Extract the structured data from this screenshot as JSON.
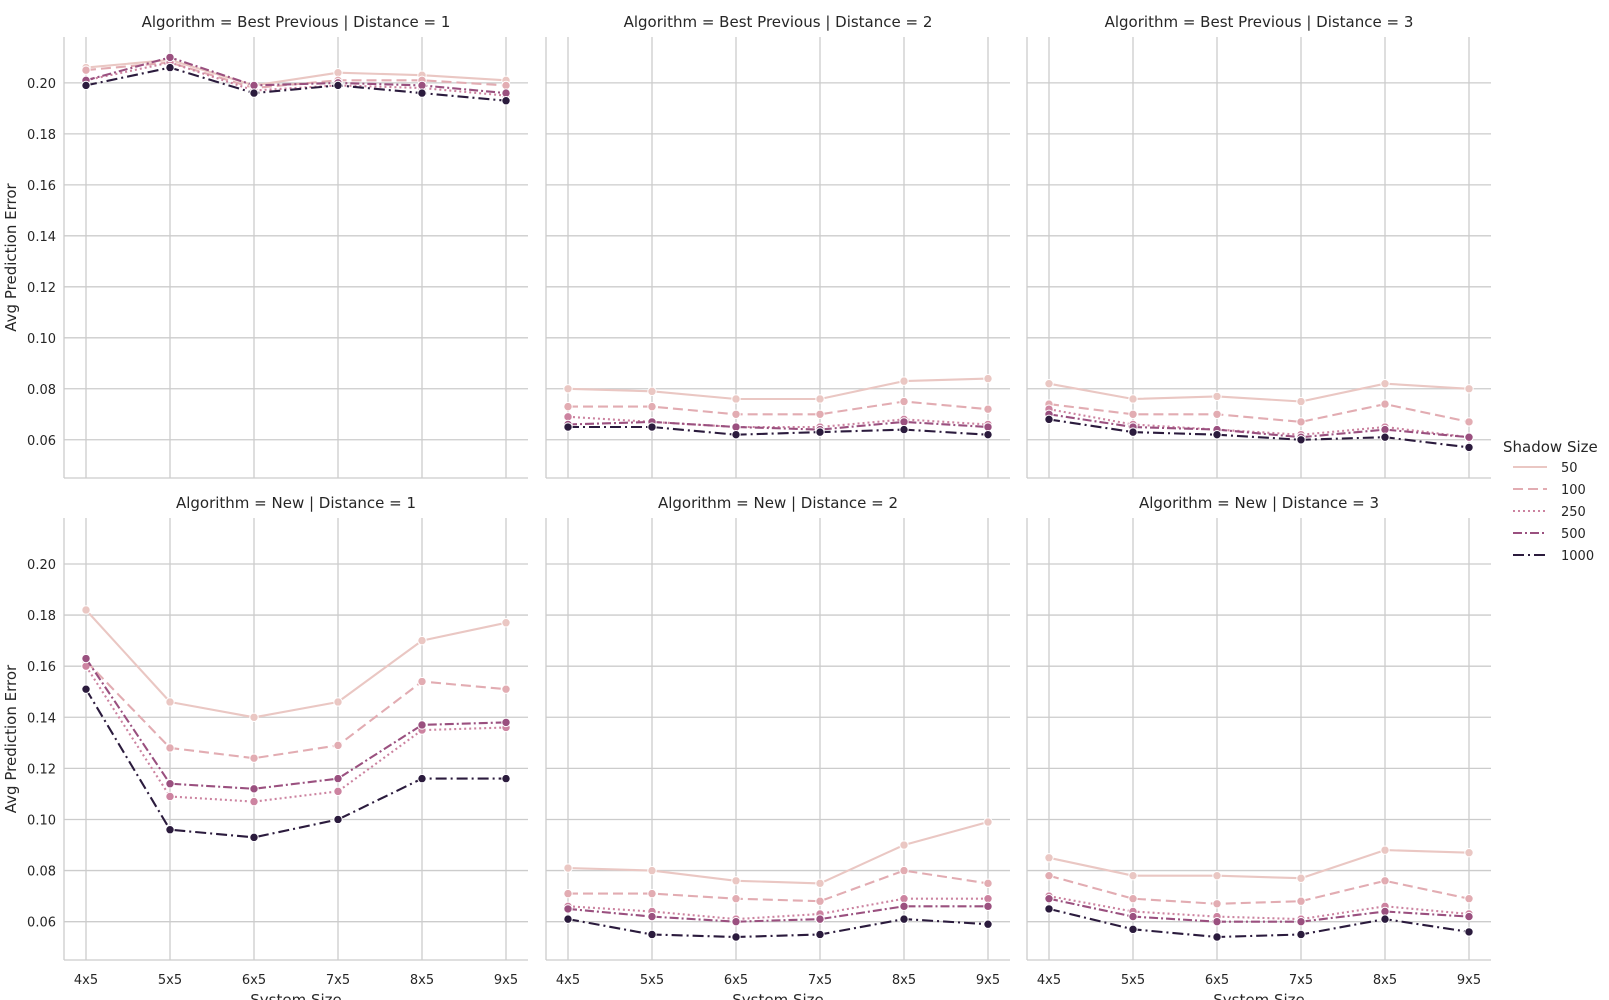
{
  "chart_data": {
    "type": "line",
    "layout": "facet-grid 2x3",
    "x": [
      "4x5",
      "5x5",
      "6x5",
      "7x5",
      "8x5",
      "9x5"
    ],
    "xlabel": "System Size",
    "ylabel": "Avg Prediction Error",
    "ylim": [
      0.045,
      0.218
    ],
    "yticks": [
      "0.06",
      "0.08",
      "0.10",
      "0.12",
      "0.14",
      "0.16",
      "0.18",
      "0.20"
    ],
    "grid": true,
    "legend": {
      "title": "Shadow Size",
      "placement": "right",
      "entries": [
        "50",
        "100",
        "250",
        "500",
        "1000"
      ]
    },
    "series_style": [
      {
        "color": "#eac7c3",
        "dash": "none"
      },
      {
        "color": "#e2acb2",
        "dash": "10,5"
      },
      {
        "color": "#cc83a0",
        "dash": "2,3"
      },
      {
        "color": "#9a507f",
        "dash": "9,3,2,3"
      },
      {
        "color": "#2b1b3d",
        "dash": "11,4,2,4"
      }
    ],
    "panels": [
      {
        "title": "Algorithm = Best Previous | Distance = 1",
        "series": [
          {
            "name": "50",
            "values": [
              0.206,
              0.209,
              0.199,
              0.204,
              0.203,
              0.201
            ]
          },
          {
            "name": "100",
            "values": [
              0.205,
              0.208,
              0.198,
              0.201,
              0.201,
              0.199
            ]
          },
          {
            "name": "250",
            "values": [
              0.201,
              0.208,
              0.197,
              0.199,
              0.198,
              0.195
            ]
          },
          {
            "name": "500",
            "values": [
              0.201,
              0.21,
              0.199,
              0.2,
              0.199,
              0.196
            ]
          },
          {
            "name": "1000",
            "values": [
              0.199,
              0.206,
              0.196,
              0.199,
              0.196,
              0.193
            ]
          }
        ]
      },
      {
        "title": "Algorithm = Best Previous | Distance = 2",
        "series": [
          {
            "name": "50",
            "values": [
              0.08,
              0.079,
              0.076,
              0.076,
              0.083,
              0.084
            ]
          },
          {
            "name": "100",
            "values": [
              0.073,
              0.073,
              0.07,
              0.07,
              0.075,
              0.072
            ]
          },
          {
            "name": "250",
            "values": [
              0.069,
              0.067,
              0.065,
              0.065,
              0.068,
              0.066
            ]
          },
          {
            "name": "500",
            "values": [
              0.066,
              0.067,
              0.065,
              0.064,
              0.067,
              0.065
            ]
          },
          {
            "name": "1000",
            "values": [
              0.065,
              0.065,
              0.062,
              0.063,
              0.064,
              0.062
            ]
          }
        ]
      },
      {
        "title": "Algorithm = Best Previous | Distance = 3",
        "series": [
          {
            "name": "50",
            "values": [
              0.082,
              0.076,
              0.077,
              0.075,
              0.082,
              0.08
            ]
          },
          {
            "name": "100",
            "values": [
              0.074,
              0.07,
              0.07,
              0.067,
              0.074,
              0.067
            ]
          },
          {
            "name": "250",
            "values": [
              0.072,
              0.066,
              0.064,
              0.062,
              0.065,
              0.061
            ]
          },
          {
            "name": "500",
            "values": [
              0.07,
              0.065,
              0.064,
              0.061,
              0.064,
              0.061
            ]
          },
          {
            "name": "1000",
            "values": [
              0.068,
              0.063,
              0.062,
              0.06,
              0.061,
              0.057
            ]
          }
        ]
      },
      {
        "title": "Algorithm = New | Distance = 1",
        "series": [
          {
            "name": "50",
            "values": [
              0.182,
              0.146,
              0.14,
              0.146,
              0.17,
              0.177
            ]
          },
          {
            "name": "100",
            "values": [
              0.162,
              0.128,
              0.124,
              0.129,
              0.154,
              0.151
            ]
          },
          {
            "name": "250",
            "values": [
              0.16,
              0.109,
              0.107,
              0.111,
              0.135,
              0.136
            ]
          },
          {
            "name": "500",
            "values": [
              0.163,
              0.114,
              0.112,
              0.116,
              0.137,
              0.138
            ]
          },
          {
            "name": "1000",
            "values": [
              0.151,
              0.096,
              0.093,
              0.1,
              0.116,
              0.116
            ]
          }
        ]
      },
      {
        "title": "Algorithm = New | Distance = 2",
        "series": [
          {
            "name": "50",
            "values": [
              0.081,
              0.08,
              0.076,
              0.075,
              0.09,
              0.099
            ]
          },
          {
            "name": "100",
            "values": [
              0.071,
              0.071,
              0.069,
              0.068,
              0.08,
              0.075
            ]
          },
          {
            "name": "250",
            "values": [
              0.066,
              0.064,
              0.061,
              0.063,
              0.069,
              0.069
            ]
          },
          {
            "name": "500",
            "values": [
              0.065,
              0.062,
              0.06,
              0.061,
              0.066,
              0.066
            ]
          },
          {
            "name": "1000",
            "values": [
              0.061,
              0.055,
              0.054,
              0.055,
              0.061,
              0.059
            ]
          }
        ]
      },
      {
        "title": "Algorithm = New | Distance = 3",
        "series": [
          {
            "name": "50",
            "values": [
              0.085,
              0.078,
              0.078,
              0.077,
              0.088,
              0.087
            ]
          },
          {
            "name": "100",
            "values": [
              0.078,
              0.069,
              0.067,
              0.068,
              0.076,
              0.069
            ]
          },
          {
            "name": "250",
            "values": [
              0.07,
              0.064,
              0.062,
              0.061,
              0.066,
              0.063
            ]
          },
          {
            "name": "500",
            "values": [
              0.069,
              0.062,
              0.06,
              0.06,
              0.064,
              0.062
            ]
          },
          {
            "name": "1000",
            "values": [
              0.065,
              0.057,
              0.054,
              0.055,
              0.061,
              0.056
            ]
          }
        ]
      }
    ]
  }
}
